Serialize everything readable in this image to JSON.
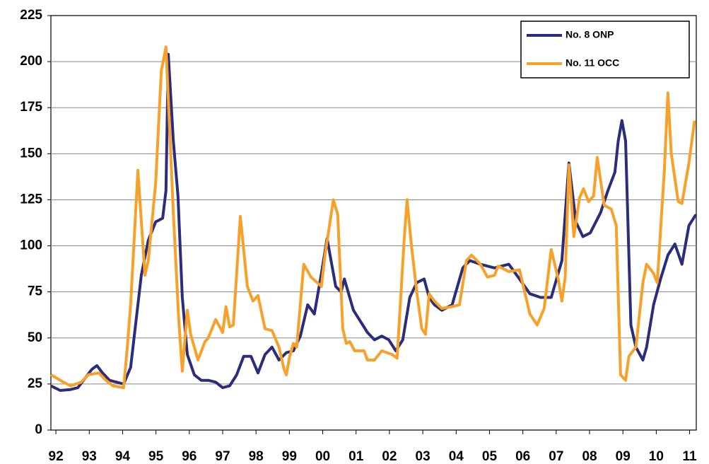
{
  "chart_data": {
    "type": "line",
    "xlim": [
      1991.85,
      2011.2
    ],
    "ylim": [
      0,
      225
    ],
    "yticks": [
      0,
      25,
      50,
      75,
      100,
      125,
      150,
      175,
      200,
      225
    ],
    "xticks": [
      {
        "value": 1992,
        "label": "92"
      },
      {
        "value": 1993,
        "label": "93"
      },
      {
        "value": 1994,
        "label": "94"
      },
      {
        "value": 1995,
        "label": "95"
      },
      {
        "value": 1996,
        "label": "96"
      },
      {
        "value": 1997,
        "label": "97"
      },
      {
        "value": 1998,
        "label": "98"
      },
      {
        "value": 1999,
        "label": "99"
      },
      {
        "value": 2000,
        "label": "00"
      },
      {
        "value": 2001,
        "label": "01"
      },
      {
        "value": 2002,
        "label": "02"
      },
      {
        "value": 2003,
        "label": "03"
      },
      {
        "value": 2004,
        "label": "04"
      },
      {
        "value": 2005,
        "label": "05"
      },
      {
        "value": 2006,
        "label": "06"
      },
      {
        "value": 2007,
        "label": "07"
      },
      {
        "value": 2008,
        "label": "08"
      },
      {
        "value": 2009,
        "label": "09"
      },
      {
        "value": 2010,
        "label": "10"
      },
      {
        "value": 2011,
        "label": "11"
      }
    ],
    "grid": true,
    "legend": "top-right",
    "series": [
      {
        "name": "No. 8 ONP",
        "color": "#2b2d7c",
        "x": [
          1991.85,
          1992.13,
          1992.44,
          1992.66,
          1992.87,
          1993.08,
          1993.23,
          1993.4,
          1993.61,
          1993.82,
          1994.03,
          1994.24,
          1994.56,
          1994.77,
          1994.99,
          1995.2,
          1995.3,
          1995.37,
          1995.52,
          1995.66,
          1995.79,
          1995.94,
          1996.15,
          1996.36,
          1996.57,
          1996.79,
          1997.0,
          1997.21,
          1997.42,
          1997.63,
          1997.85,
          1998.06,
          1998.27,
          1998.48,
          1998.69,
          1998.91,
          1999.12,
          1999.33,
          1999.55,
          1999.75,
          1999.96,
          2000.13,
          2000.39,
          2000.55,
          2000.65,
          2000.92,
          2001.13,
          2001.34,
          2001.55,
          2001.77,
          2001.98,
          2002.19,
          2002.4,
          2002.61,
          2002.82,
          2003.04,
          2003.19,
          2003.35,
          2003.57,
          2003.88,
          2004.2,
          2004.41,
          2004.73,
          2005.15,
          2005.58,
          2005.9,
          2006.21,
          2006.53,
          2006.85,
          2007.17,
          2007.38,
          2007.59,
          2007.8,
          2008.02,
          2008.33,
          2008.55,
          2008.76,
          2008.86,
          2008.97,
          2009.08,
          2009.24,
          2009.39,
          2009.6,
          2009.71,
          2009.92,
          2010.13,
          2010.35,
          2010.56,
          2010.77,
          2010.98,
          2011.19
        ],
        "values": [
          24,
          21.5,
          22,
          23,
          28,
          33,
          35,
          31,
          27,
          26,
          25,
          34,
          84,
          103,
          113,
          115,
          130,
          204,
          157,
          127,
          72,
          41,
          30,
          27,
          27,
          26,
          23,
          24,
          30,
          40,
          40,
          31,
          41,
          45,
          38,
          42,
          43,
          51,
          68,
          63,
          85,
          104,
          78,
          75,
          82,
          65,
          59,
          53,
          49,
          51,
          49,
          43,
          49,
          72,
          80,
          82,
          72,
          68,
          65,
          68,
          88,
          92,
          90,
          88,
          90,
          82,
          74,
          72,
          72,
          92,
          145,
          113,
          105,
          107,
          118,
          130,
          140,
          157,
          168,
          157,
          57,
          45,
          38,
          45,
          68,
          82,
          95,
          101,
          90,
          111,
          117
        ]
      },
      {
        "name": "No. 11 OCC",
        "color": "#f7a12a",
        "x": [
          1991.85,
          1992.23,
          1992.44,
          1992.76,
          1992.97,
          1993.29,
          1993.5,
          1993.71,
          1994.03,
          1994.14,
          1994.24,
          1994.46,
          1994.67,
          1994.77,
          1994.99,
          1995.16,
          1995.3,
          1995.52,
          1995.68,
          1995.79,
          1995.94,
          1996.04,
          1996.26,
          1996.47,
          1996.57,
          1996.79,
          1997.0,
          1997.1,
          1997.21,
          1997.32,
          1997.53,
          1997.74,
          1997.91,
          1998.06,
          1998.27,
          1998.48,
          1998.69,
          1998.84,
          1998.91,
          1999.01,
          1999.12,
          1999.22,
          1999.43,
          1999.65,
          1999.96,
          2000.07,
          2000.32,
          2000.45,
          2000.6,
          2000.71,
          2000.81,
          2000.96,
          2001.24,
          2001.34,
          2001.55,
          2001.77,
          2002.08,
          2002.23,
          2002.44,
          2002.53,
          2002.66,
          2002.82,
          2002.97,
          2003.08,
          2003.19,
          2003.35,
          2003.57,
          2003.88,
          2004.1,
          2004.31,
          2004.46,
          2004.73,
          2004.94,
          2005.15,
          2005.26,
          2005.58,
          2005.9,
          2006.21,
          2006.43,
          2006.64,
          2006.85,
          2007.06,
          2007.17,
          2007.27,
          2007.38,
          2007.53,
          2007.7,
          2007.82,
          2007.97,
          2008.12,
          2008.23,
          2008.44,
          2008.65,
          2008.8,
          2008.93,
          2009.08,
          2009.18,
          2009.39,
          2009.6,
          2009.71,
          2009.92,
          2010.03,
          2010.24,
          2010.35,
          2010.45,
          2010.66,
          2010.77,
          2010.98,
          2011.15
        ],
        "values": [
          30,
          26,
          24,
          26,
          30,
          31,
          27,
          24,
          23,
          45,
          68,
          141,
          84,
          92,
          134,
          195,
          208,
          118,
          61,
          32,
          65,
          52,
          38,
          48,
          50,
          60,
          53,
          67,
          56,
          57,
          116,
          78,
          70,
          73,
          55,
          54,
          45,
          33,
          30,
          40,
          47,
          45,
          90,
          83,
          78,
          95,
          125,
          117,
          55,
          47,
          48,
          43,
          43,
          38,
          38,
          43,
          41,
          39,
          103,
          125,
          100,
          75,
          55,
          52,
          74,
          70,
          66,
          67,
          68,
          92,
          95,
          90,
          83,
          84,
          89,
          86,
          87,
          63,
          57,
          66,
          98,
          82,
          70,
          83,
          144,
          105,
          126,
          131,
          124,
          127,
          148,
          122,
          120,
          111,
          30,
          27,
          40,
          45,
          80,
          90,
          85,
          80,
          140,
          183,
          150,
          124,
          123,
          145,
          168
        ]
      }
    ]
  }
}
